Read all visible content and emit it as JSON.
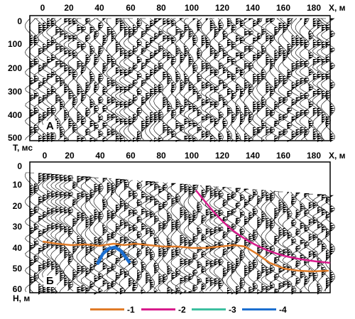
{
  "panel_a": {
    "letter": "А",
    "x_axis_label": "X, м",
    "y_axis_label": "T, мс",
    "x_ticks": [
      "0",
      "20",
      "40",
      "60",
      "80",
      "100",
      "120",
      "140",
      "160",
      "180"
    ],
    "y_ticks": [
      "0",
      "100",
      "200",
      "300",
      "400",
      "500"
    ]
  },
  "panel_b": {
    "letter": "Б",
    "x_axis_label": "X, м",
    "y_axis_label": "H, м",
    "x_ticks": [
      "0",
      "20",
      "40",
      "60",
      "80",
      "100",
      "120",
      "140",
      "160",
      "180"
    ],
    "y_ticks": [
      "0",
      "10",
      "20",
      "30",
      "40",
      "50",
      "60"
    ]
  },
  "legend": [
    {
      "label": "-1",
      "color": "#e07b28"
    },
    {
      "label": "-2",
      "color": "#d81b8c"
    },
    {
      "label": "-3",
      "color": "#3dbfa0"
    },
    {
      "label": "-4",
      "color": "#1c6fd0"
    }
  ]
}
